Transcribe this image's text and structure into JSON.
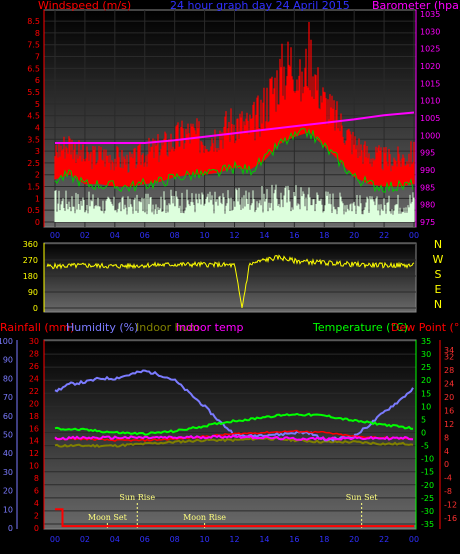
{
  "chart_data": [
    {
      "type": "line",
      "title": "24 hour graph day 24 April 2015",
      "ylabel_left": "Windspeed (m/s)",
      "ylabel_right": "Barometer (hpa)",
      "x_ticks": [
        "00",
        "02",
        "04",
        "06",
        "08",
        "10",
        "12",
        "14",
        "16",
        "18",
        "20",
        "22",
        "00"
      ],
      "y_ticks_left": [
        "0",
        "0.5",
        "1",
        "1.5",
        "2",
        "2.5",
        "3",
        "3.5",
        "4",
        "4.5",
        "5",
        "5.5",
        "6",
        "6.5",
        "7",
        "7.5",
        "8",
        "8.5"
      ],
      "y_ticks_right": [
        "975",
        "980",
        "985",
        "990",
        "995",
        "1000",
        "1005",
        "1010",
        "1015",
        "1020",
        "1025",
        "1030",
        "1035"
      ],
      "ylim_left": [
        0,
        8.8
      ],
      "ylim_right": [
        975,
        1035
      ],
      "series": [
        {
          "name": "Barometer",
          "axis": "right",
          "x": [
            0,
            2,
            4,
            6,
            7,
            8,
            10,
            12,
            14,
            16,
            18,
            20,
            22,
            24
          ],
          "y": [
            997.8,
            997.8,
            997.8,
            997.8,
            998.2,
            998.6,
            999.6,
            1000.6,
            1001.6,
            1002.6,
            1003.6,
            1004.6,
            1005.8,
            1006.6
          ]
        },
        {
          "name": "Gust",
          "axis": "left",
          "x": [
            0,
            1,
            2,
            3,
            4,
            5,
            6,
            7,
            8,
            9,
            10,
            11,
            12,
            13,
            14,
            15,
            16,
            16.5,
            17,
            17.5,
            18,
            19,
            20,
            21,
            22,
            23,
            24
          ],
          "y": [
            3.6,
            4.0,
            3.2,
            3.4,
            3.3,
            3.0,
            3.5,
            3.8,
            4.2,
            4.6,
            4.2,
            4.6,
            5.2,
            4.8,
            6.0,
            7.5,
            8.5,
            6.5,
            8.8,
            7.0,
            6.0,
            5.0,
            4.0,
            3.4,
            3.2,
            3.2,
            3.5
          ]
        },
        {
          "name": "Average",
          "axis": "left",
          "x": [
            0,
            1,
            2,
            3,
            4,
            5,
            6,
            7,
            8,
            9,
            10,
            11,
            12,
            13,
            14,
            15,
            16,
            17,
            18,
            19,
            20,
            21,
            22,
            23,
            24
          ],
          "y": [
            1.8,
            2.0,
            1.6,
            1.6,
            1.5,
            1.5,
            1.6,
            1.7,
            1.9,
            2.0,
            2.0,
            2.1,
            2.3,
            2.2,
            2.6,
            3.3,
            3.6,
            3.8,
            3.2,
            2.6,
            1.9,
            1.6,
            1.5,
            1.5,
            1.6
          ]
        },
        {
          "name": "Calm",
          "axis": "left",
          "x": [
            0,
            2,
            4,
            6,
            8,
            10,
            12,
            14,
            16,
            18,
            20,
            22,
            24
          ],
          "y": [
            1.2,
            1.1,
            0.9,
            1.0,
            1.2,
            1.1,
            1.2,
            1.3,
            1.4,
            1.2,
            1.0,
            0.9,
            1.2
          ]
        }
      ]
    },
    {
      "type": "line",
      "ylabel_right": [
        "N",
        "W",
        "S",
        "E",
        "N"
      ],
      "y_ticks": [
        "0",
        "90",
        "180",
        "270",
        "360"
      ],
      "ylim": [
        0,
        360
      ],
      "series": [
        {
          "name": "Wind direction",
          "x": [
            0,
            2,
            4,
            6,
            8,
            10,
            12,
            12.5,
            13,
            14,
            15,
            16,
            18,
            20,
            22,
            24
          ],
          "y": [
            235,
            240,
            235,
            240,
            245,
            245,
            240,
            0,
            245,
            270,
            285,
            265,
            255,
            245,
            240,
            240
          ]
        }
      ]
    },
    {
      "type": "line",
      "header_left": [
        "Rainfall (mm)",
        "Humidity (%)",
        "Indoor hum",
        "Indoor temp"
      ],
      "header_right": [
        "Temperature (°C)",
        "Dew Point (°C)"
      ],
      "y_ticks_humidity": [
        "0",
        "10",
        "20",
        "30",
        "40",
        "50",
        "60",
        "70",
        "80",
        "90",
        "100"
      ],
      "y_ticks_rain": [
        "0",
        "2",
        "4",
        "6",
        "8",
        "10",
        "12",
        "14",
        "16",
        "18",
        "20",
        "22",
        "24",
        "26",
        "28",
        "30"
      ],
      "y_ticks_temp": [
        "-35",
        "-30",
        "-25",
        "-20",
        "-15",
        "-10",
        "-5",
        "0",
        "5",
        "10",
        "15",
        "20",
        "25",
        "30",
        "35"
      ],
      "y_ticks_dew": [
        "-16",
        "-12",
        "-8",
        "-4",
        "0",
        "4",
        "8",
        "12",
        "16",
        "20",
        "24",
        "28",
        "32",
        "34"
      ],
      "series": [
        {
          "name": "Humidity",
          "axis": "humidity",
          "x": [
            0,
            1,
            2,
            3,
            4,
            5,
            6,
            7,
            8,
            9,
            10,
            11,
            12,
            13,
            14,
            15,
            16,
            17,
            18,
            19,
            20,
            21,
            22,
            23,
            24
          ],
          "y": [
            73,
            77,
            78,
            80,
            80,
            82,
            84,
            82,
            79,
            72,
            65,
            57,
            50,
            49,
            50,
            50,
            51,
            51,
            47,
            48,
            49,
            55,
            62,
            68,
            75
          ]
        },
        {
          "name": "Indoor temp",
          "axis": "rain",
          "x": [
            0,
            4,
            8,
            12,
            16,
            20,
            24
          ],
          "y": [
            14.4,
            14.5,
            14.5,
            14.7,
            14.3,
            14.4,
            14.4
          ]
        },
        {
          "name": "Indoor hum",
          "axis": "humidity",
          "x": [
            0,
            2,
            4,
            6,
            8,
            10,
            12,
            14,
            16,
            18,
            20,
            22,
            24
          ],
          "y": [
            44,
            44,
            44,
            45,
            46,
            47,
            47,
            48,
            47,
            46,
            46,
            45,
            45
          ]
        },
        {
          "name": "Rainfall",
          "axis": "rain",
          "x": [
            0,
            0.5,
            0.5,
            24
          ],
          "y": [
            3.0,
            3.0,
            0.3,
            0.3
          ]
        },
        {
          "name": "Temperature",
          "axis": "temp",
          "x": [
            0,
            2,
            4,
            6,
            8,
            10,
            12,
            13,
            14,
            16,
            18,
            19,
            20,
            22,
            24
          ],
          "y": [
            1.5,
            1.0,
            0.0,
            -0.5,
            0.5,
            2.5,
            4.5,
            5.0,
            6.0,
            7.0,
            6.5,
            5.5,
            4.5,
            3.0,
            1.5
          ]
        },
        {
          "name": "Dew Point",
          "axis": "temp",
          "x": [
            0,
            2,
            4,
            6,
            8,
            10,
            12,
            14,
            16,
            18,
            20,
            22,
            24
          ],
          "y": [
            -2.5,
            -2.5,
            -3,
            -3,
            -2.5,
            -1.5,
            -0.5,
            0.0,
            0.5,
            0.0,
            -1.5,
            -2.0,
            -2.5
          ]
        }
      ],
      "annotations": [
        {
          "label": "Moon Set",
          "hour": 3.5
        },
        {
          "label": "Sun Rise",
          "hour": 5.5
        },
        {
          "label": "Moon Rise",
          "hour": 10.0
        },
        {
          "label": "Sun Set",
          "hour": 20.5
        }
      ]
    }
  ],
  "colors": {
    "gust": "#ff0000",
    "average": "#00c800",
    "calm": "#ddffdd",
    "barometer": "#ff00ff",
    "direction": "#ffff00",
    "humidity": "#7b7bff",
    "indoor_temp": "#ff00ff",
    "indoor_hum": "#808000",
    "rainfall": "#ff0000",
    "temperature": "#00ff00",
    "dewpoint": "#ff0000",
    "annotation": "#ffff80"
  }
}
